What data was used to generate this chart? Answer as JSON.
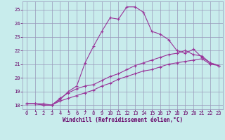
{
  "xlabel": "Windchill (Refroidissement éolien,°C)",
  "bg_color": "#c8ecec",
  "line_color": "#993399",
  "grid_color": "#9999bb",
  "xlim": [
    -0.5,
    23.5
  ],
  "ylim": [
    17.7,
    25.6
  ],
  "xticks": [
    0,
    1,
    2,
    3,
    4,
    5,
    6,
    7,
    8,
    9,
    10,
    11,
    12,
    13,
    14,
    15,
    16,
    17,
    18,
    19,
    20,
    21,
    22,
    23
  ],
  "yticks": [
    18,
    19,
    20,
    21,
    22,
    23,
    24,
    25
  ],
  "line1_x": [
    0,
    1,
    2,
    3,
    4,
    5,
    6,
    7,
    8,
    9,
    10,
    11,
    12,
    13,
    14,
    15,
    16,
    17,
    18,
    19,
    20,
    21,
    22,
    23
  ],
  "line1_y": [
    18.1,
    18.1,
    18.1,
    18.0,
    18.3,
    18.5,
    18.7,
    18.9,
    19.1,
    19.4,
    19.6,
    19.9,
    20.1,
    20.3,
    20.5,
    20.6,
    20.8,
    21.0,
    21.1,
    21.2,
    21.3,
    21.4,
    21.0,
    20.9
  ],
  "line2_x": [
    0,
    1,
    2,
    3,
    4,
    5,
    6,
    7,
    8,
    9,
    10,
    11,
    12,
    13,
    14,
    15,
    16,
    17,
    18,
    19,
    20,
    21,
    22,
    23
  ],
  "line2_y": [
    18.1,
    18.1,
    18.0,
    18.0,
    18.4,
    19.0,
    19.4,
    21.1,
    22.3,
    23.4,
    24.4,
    24.3,
    25.2,
    25.2,
    24.8,
    23.4,
    23.2,
    22.8,
    22.0,
    21.8,
    22.1,
    21.5,
    21.1,
    20.9
  ],
  "line3_x": [
    0,
    1,
    2,
    3,
    4,
    5,
    6,
    7,
    8,
    9,
    10,
    11,
    12,
    13,
    14,
    15,
    16,
    17,
    18,
    19,
    20,
    21,
    22,
    23
  ],
  "line3_y": [
    18.1,
    18.1,
    18.0,
    18.0,
    18.5,
    18.9,
    19.2,
    19.4,
    19.5,
    19.8,
    20.1,
    20.3,
    20.6,
    20.9,
    21.1,
    21.3,
    21.5,
    21.7,
    21.8,
    22.0,
    21.7,
    21.6,
    21.1,
    20.9
  ],
  "marker": "+",
  "markersize": 3.5,
  "linewidth": 0.8,
  "font_color": "#660066",
  "tick_fontsize": 5.0,
  "xlabel_fontsize": 5.5
}
